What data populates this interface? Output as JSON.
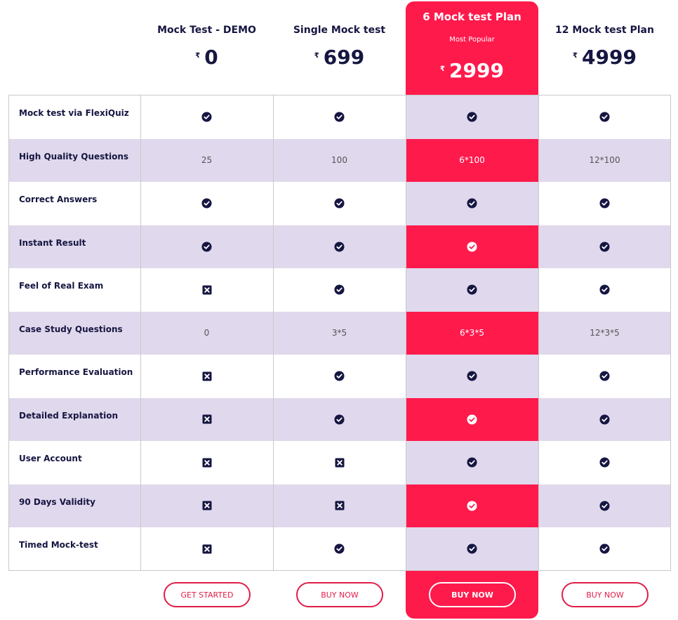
{
  "colors": {
    "accent": "#ff1a4c",
    "band": "#e0d8ec",
    "navy": "#161642",
    "border": "#c9c9c9"
  },
  "currency_symbol": "₹",
  "plans": [
    {
      "name": "Mock Test - DEMO",
      "price": "0",
      "badge": "",
      "button": "GET STARTED"
    },
    {
      "name": "Single Mock test",
      "price": "699",
      "badge": "",
      "button": "BUY NOW"
    },
    {
      "name": "6 Mock test Plan",
      "price": "2999",
      "badge": "Most Popular",
      "button": "BUY NOW"
    },
    {
      "name": "12 Mock test Plan",
      "price": "4999",
      "badge": "",
      "button": "BUY NOW"
    }
  ],
  "features": [
    {
      "label": "Mock test via FlexiQuiz",
      "values": [
        "check",
        "check",
        "check",
        "check"
      ]
    },
    {
      "label": "High Quality Questions",
      "values": [
        "25",
        "100",
        "6*100",
        "12*100"
      ]
    },
    {
      "label": "Correct Answers",
      "values": [
        "check",
        "check",
        "check",
        "check"
      ]
    },
    {
      "label": "Instant Result",
      "values": [
        "check",
        "check",
        "check",
        "check"
      ]
    },
    {
      "label": "Feel of Real Exam",
      "values": [
        "cross",
        "check",
        "check",
        "check"
      ]
    },
    {
      "label": "Case Study Questions",
      "values": [
        "0",
        "3*5",
        "6*3*5",
        "12*3*5"
      ]
    },
    {
      "label": "Performance Evaluation",
      "values": [
        "cross",
        "check",
        "check",
        "check"
      ]
    },
    {
      "label": "Detailed Explanation",
      "values": [
        "cross",
        "check",
        "check",
        "check"
      ]
    },
    {
      "label": "User Account",
      "values": [
        "cross",
        "cross",
        "check",
        "check"
      ]
    },
    {
      "label": "90 Days Validity",
      "values": [
        "cross",
        "cross",
        "check",
        "check"
      ]
    },
    {
      "label": "Timed Mock-test",
      "values": [
        "cross",
        "check",
        "check",
        "check"
      ]
    }
  ]
}
